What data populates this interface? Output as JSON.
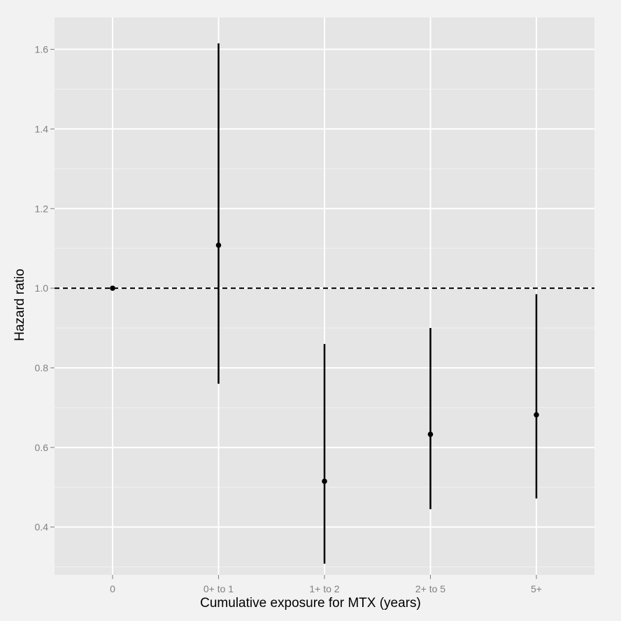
{
  "chart_data": {
    "type": "errorbar",
    "xlabel": "Cumulative exposure for MTX (years)",
    "ylabel": "Hazard ratio",
    "categories": [
      "0",
      "0+ to 1",
      "1+ to 2",
      "2+ to 5",
      "5+"
    ],
    "points": [
      {
        "category": "0",
        "estimate": 1.0,
        "lower": null,
        "upper": null
      },
      {
        "category": "0+ to 1",
        "estimate": 1.108,
        "lower": 0.76,
        "upper": 1.615
      },
      {
        "category": "1+ to 2",
        "estimate": 0.515,
        "lower": 0.308,
        "upper": 0.86
      },
      {
        "category": "2+ to 5",
        "estimate": 0.633,
        "lower": 0.445,
        "upper": 0.9
      },
      {
        "category": "5+",
        "estimate": 0.682,
        "lower": 0.472,
        "upper": 0.985
      }
    ],
    "yticks": [
      "0.4",
      "0.6",
      "0.8",
      "1.0",
      "1.2",
      "1.4",
      "1.6"
    ],
    "ylim": [
      0.28,
      1.68
    ],
    "reference_line": {
      "y": 1.0,
      "style": "dashed"
    },
    "grid": true,
    "colors": {
      "panel": "#e5e5e5",
      "grid": "#ffffff",
      "marks": "#000000"
    }
  }
}
